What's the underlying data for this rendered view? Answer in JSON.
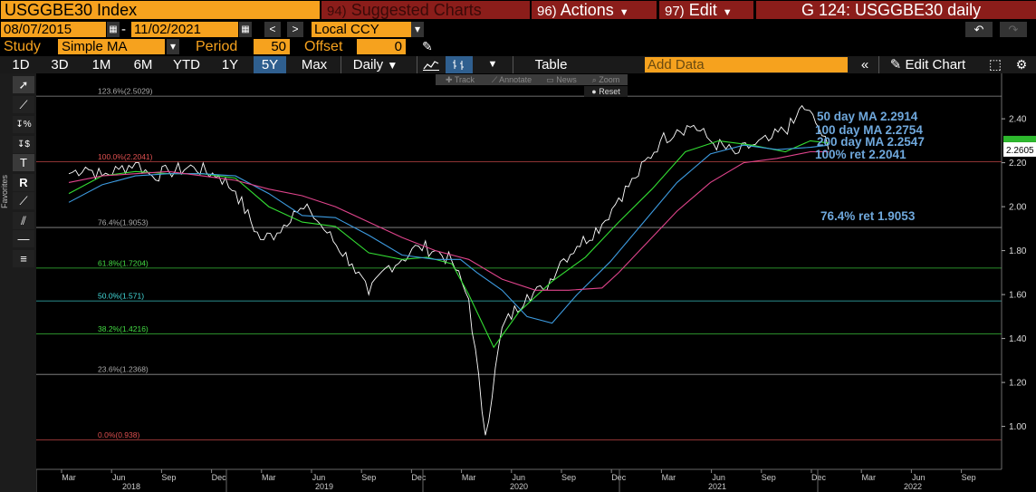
{
  "header": {
    "ticker": "USGGBE30 Index",
    "suggested": {
      "num": "94)",
      "label": "Suggested Charts"
    },
    "actions": {
      "num": "96)",
      "label": "Actions"
    },
    "edit": {
      "num": "97)",
      "label": "Edit"
    },
    "title": "G 124: USGGBE30 daily"
  },
  "range": {
    "start": "08/07/2015",
    "end": "11/02/2021",
    "dash": "-",
    "currency": "Local CCY"
  },
  "study": {
    "label": "Study",
    "value": "Simple MA",
    "period_label": "Period",
    "period": "50",
    "offset_label": "Offset",
    "offset": "0"
  },
  "toolbar": {
    "periods": [
      "1D",
      "3D",
      "1M",
      "6M",
      "YTD",
      "1Y",
      "5Y",
      "Max"
    ],
    "active_period": "5Y",
    "frequency": "Daily",
    "table": "Table",
    "add_data_placeholder": "Add Data",
    "edit_chart": "Edit Chart"
  },
  "overlay_buttons": [
    "Track",
    "Annotate",
    "News",
    "Zoom"
  ],
  "reset_label": "Reset",
  "favorites_label": "Favorites",
  "colors": {
    "orange": "#f6a21e",
    "maroon": "#8b1d1a",
    "price": "#ffffff",
    "ma50": "#33dd33",
    "ma100": "#3d9be0",
    "ma200": "#e0448c",
    "annot": "#6fa8dc",
    "last_badge": "#2db82d"
  },
  "chart_data": {
    "type": "line",
    "ylim": [
      0.9,
      2.52
    ],
    "y_ticks": [
      "1.00",
      "1.20",
      "1.40",
      "1.60",
      "1.80",
      "2.00",
      "2.20",
      "2.40"
    ],
    "x_months": [
      "Mar",
      "Jun",
      "Sep",
      "Dec",
      "Mar",
      "Jun",
      "Sep",
      "Dec",
      "Mar",
      "Jun",
      "Sep",
      "Dec",
      "Mar",
      "Jun",
      "Sep",
      "Dec",
      "Mar",
      "Jun",
      "Sep"
    ],
    "x_years": [
      "2018",
      "2019",
      "2020",
      "2021",
      "2022"
    ],
    "last_value": "2.2605",
    "fib_levels": [
      {
        "label": "123.6%(2.5029)",
        "value": 2.5029,
        "color": "#aaaaaa"
      },
      {
        "label": "100.0%(2.2041)",
        "value": 2.2041,
        "color": "#e05050"
      },
      {
        "label": "76.4%(1.9053)",
        "value": 1.9053,
        "color": "#aaaaaa"
      },
      {
        "label": "61.8%(1.7204)",
        "value": 1.7204,
        "color": "#44dd44"
      },
      {
        "label": "50.0%(1.571)",
        "value": 1.571,
        "color": "#44dddd"
      },
      {
        "label": "38.2%(1.4216)",
        "value": 1.4216,
        "color": "#44dd44"
      },
      {
        "label": "23.6%(1.2368)",
        "value": 1.2368,
        "color": "#aaaaaa"
      },
      {
        "label": "0.0%(0.938)",
        "value": 0.938,
        "color": "#e05050"
      }
    ],
    "annotations": [
      "50 day MA 2.2914",
      "100 day MA 2.2754",
      "200 day MA 2.2547",
      "100% ret 2.2041",
      "76.4% ret 1.9053"
    ],
    "series": [
      {
        "name": "USGGBE30",
        "t": [
          0.0,
          1.0,
          2.0,
          3.0,
          4.0,
          5.0,
          6.0,
          7.5,
          9.0,
          10.0,
          11.5,
          12.5,
          13.5,
          14.5,
          15.5,
          17.0,
          18.0,
          19.0,
          20.0,
          21.0,
          22.0,
          23.0,
          24.0,
          25.0,
          26.0,
          27.5,
          28.5,
          29.5,
          30.5,
          32.0,
          33.0,
          34.0,
          35.5,
          36.5,
          37.5,
          38.5,
          40.0,
          41.0,
          42.0,
          43.5,
          44.0,
          44.3,
          45.0,
          45.6
        ],
        "values": [
          2.15,
          2.18,
          2.14,
          2.17,
          2.2,
          2.14,
          2.16,
          2.18,
          2.14,
          2.07,
          1.85,
          1.88,
          1.98,
          1.98,
          1.88,
          1.74,
          1.6,
          1.72,
          1.76,
          1.82,
          1.8,
          1.75,
          1.58,
          0.96,
          1.45,
          1.6,
          1.62,
          1.75,
          1.82,
          1.92,
          2.04,
          2.13,
          2.3,
          2.35,
          2.37,
          2.3,
          2.24,
          2.28,
          2.3,
          2.38,
          2.46,
          2.44,
          2.36,
          2.26
        ]
      },
      {
        "name": "50 day MA",
        "t": [
          0.0,
          2.0,
          4.0,
          6.0,
          8.0,
          10.0,
          12.0,
          14.0,
          16.0,
          18.0,
          20.0,
          21.5,
          23.0,
          24.0,
          25.5,
          27.0,
          29.0,
          31.0,
          33.0,
          35.0,
          37.0,
          39.0,
          41.0,
          43.0,
          44.5,
          45.6
        ],
        "values": [
          2.06,
          2.14,
          2.16,
          2.15,
          2.15,
          2.13,
          2.0,
          1.93,
          1.91,
          1.79,
          1.76,
          1.77,
          1.74,
          1.6,
          1.36,
          1.52,
          1.66,
          1.77,
          1.93,
          2.08,
          2.25,
          2.3,
          2.28,
          2.25,
          2.3,
          2.29
        ]
      },
      {
        "name": "100 day MA",
        "t": [
          0.0,
          2.0,
          4.0,
          6.0,
          8.0,
          10.0,
          12.0,
          14.0,
          16.0,
          18.0,
          20.0,
          22.0,
          23.5,
          24.5,
          26.0,
          27.5,
          29.0,
          30.5,
          32.5,
          34.5,
          36.5,
          38.5,
          40.5,
          42.5,
          44.5,
          45.6
        ],
        "values": [
          2.02,
          2.1,
          2.14,
          2.15,
          2.15,
          2.14,
          2.06,
          1.96,
          1.95,
          1.87,
          1.78,
          1.76,
          1.76,
          1.7,
          1.62,
          1.5,
          1.47,
          1.6,
          1.75,
          1.93,
          2.11,
          2.24,
          2.28,
          2.26,
          2.27,
          2.28
        ]
      },
      {
        "name": "200 day MA",
        "t": [
          0.0,
          2.0,
          4.0,
          6.0,
          8.0,
          10.0,
          12.0,
          14.0,
          16.0,
          18.0,
          20.0,
          22.0,
          24.0,
          26.0,
          28.0,
          30.0,
          32.0,
          33.0,
          34.5,
          36.5,
          38.5,
          40.5,
          42.5,
          44.5,
          45.6
        ],
        "values": [
          2.11,
          2.14,
          2.15,
          2.16,
          2.14,
          2.12,
          2.08,
          2.05,
          2.0,
          1.93,
          1.86,
          1.8,
          1.76,
          1.67,
          1.62,
          1.62,
          1.63,
          1.7,
          1.82,
          1.98,
          2.11,
          2.2,
          2.22,
          2.25,
          2.25
        ]
      }
    ]
  }
}
